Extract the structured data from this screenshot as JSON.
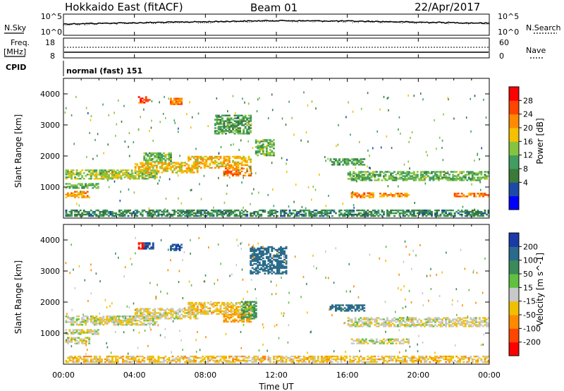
{
  "header": {
    "radar": "Hokkaido East (fitACF)",
    "beam": "Beam 01",
    "date": "22/Apr/2017"
  },
  "noise_panel": {
    "left_label": "N.Sky",
    "right_label": "N.Search",
    "ticks_left": [
      "10^5",
      "10^0"
    ],
    "ticks_right": [
      "10^5",
      "10^0"
    ]
  },
  "freq_panel": {
    "left_label_1": "Freq.",
    "left_label_2": "[MHz]",
    "right_label": "Nave",
    "ticks_left": [
      "18",
      "8"
    ],
    "ticks_right": [
      "60",
      "0"
    ]
  },
  "cpid": {
    "label": "CPID",
    "value": "normal (fast) 151"
  },
  "power_panel": {
    "ylabel": "Slant Range [km]",
    "yticks": [
      "4000",
      "3000",
      "2000",
      "1000"
    ],
    "colorbar_label": "Power [dB]",
    "colorbar_ticks": [
      "28",
      "24",
      "20",
      "16",
      "12",
      "8",
      "4"
    ],
    "colors": [
      "#0000ff",
      "#1c4aa8",
      "#3a7a3a",
      "#3f9e60",
      "#86c440",
      "#f5c000",
      "#ff8a00",
      "#ff4500",
      "#ff0000"
    ]
  },
  "velocity_panel": {
    "ylabel": "Slant Range [km]",
    "yticks": [
      "4000",
      "3000",
      "2000",
      "1000"
    ],
    "colorbar_label": "Velocity [m s^-1]",
    "colorbar_ticks": [
      "200",
      "100",
      "50",
      "15",
      "-15",
      "-50",
      "-100",
      "-200"
    ],
    "colors": [
      "#1a3aa8",
      "#2a6a8a",
      "#3a8a5a",
      "#60c040",
      "#c8c8c8",
      "#f0c000",
      "#ff8a00",
      "#ff4500",
      "#ff0000"
    ]
  },
  "xaxis": {
    "label": "Time UT",
    "ticks": [
      "00:00",
      "04:00",
      "08:00",
      "12:00",
      "16:00",
      "20:00",
      "00:00"
    ]
  },
  "chart_data": [
    {
      "type": "line",
      "title": "Hokkaido East (fitACF)",
      "series": [
        {
          "name": "N.Sky",
          "x": [
            0,
            4,
            8,
            12,
            16,
            20,
            24
          ],
          "values": [
            5,
            10,
            20,
            40,
            30,
            15,
            8
          ]
        },
        {
          "name": "N.Search",
          "x": [
            0,
            4,
            8,
            12,
            16,
            20,
            24
          ],
          "values": [
            3,
            8,
            15,
            30,
            20,
            12,
            6
          ]
        }
      ],
      "xlabel": "Time UT",
      "ylabel": "N.Sky",
      "xlim": [
        0,
        24
      ]
    },
    {
      "type": "heatmap",
      "title": "Power",
      "xlabel": "Time UT",
      "ylabel": "Slant Range [km]",
      "xlim": [
        0,
        24
      ],
      "ylim": [
        0,
        4500
      ],
      "zlabel": "Power [dB]",
      "zlim": [
        0,
        30
      ],
      "patches": [
        {
          "t": [
            0.1,
            5.2
          ],
          "r": [
            1250,
            1550
          ],
          "p": 16
        },
        {
          "t": [
            0.1,
            2.0
          ],
          "r": [
            950,
            1100
          ],
          "p": 14
        },
        {
          "t": [
            0.1,
            1.5
          ],
          "r": [
            650,
            850
          ],
          "p": 22
        },
        {
          "t": [
            2.0,
            4.0
          ],
          "r": [
            1280,
            1420
          ],
          "p": 18
        },
        {
          "t": [
            4.0,
            7.5
          ],
          "r": [
            1450,
            1800
          ],
          "p": 20
        },
        {
          "t": [
            4.5,
            6.0
          ],
          "r": [
            1800,
            2100
          ],
          "p": 14
        },
        {
          "t": [
            7.0,
            10.5
          ],
          "r": [
            1600,
            2000
          ],
          "p": 20
        },
        {
          "t": [
            9.0,
            10.5
          ],
          "r": [
            1350,
            1600
          ],
          "p": 24
        },
        {
          "t": [
            4.2,
            4.8
          ],
          "r": [
            3700,
            3900
          ],
          "p": 26
        },
        {
          "t": [
            6.0,
            6.6
          ],
          "r": [
            3650,
            3850
          ],
          "p": 24
        },
        {
          "t": [
            8.5,
            10.5
          ],
          "r": [
            2700,
            3300
          ],
          "p": 12
        },
        {
          "t": [
            10.8,
            11.8
          ],
          "r": [
            2000,
            2500
          ],
          "p": 14
        },
        {
          "t": [
            15.0,
            17.0
          ],
          "r": [
            1700,
            1900
          ],
          "p": 12
        },
        {
          "t": [
            16.0,
            21.0
          ],
          "r": [
            1200,
            1500
          ],
          "p": 14
        },
        {
          "t": [
            16.2,
            17.5
          ],
          "r": [
            650,
            800
          ],
          "p": 24
        },
        {
          "t": [
            17.8,
            19.5
          ],
          "r": [
            680,
            780
          ],
          "p": 22
        },
        {
          "t": [
            22.0,
            24.0
          ],
          "r": [
            680,
            800
          ],
          "p": 24
        },
        {
          "t": [
            21.0,
            24.0
          ],
          "r": [
            1200,
            1500
          ],
          "p": 14
        },
        {
          "t": [
            0.1,
            24.0
          ],
          "r": [
            50,
            250
          ],
          "p": 10
        }
      ]
    },
    {
      "type": "heatmap",
      "title": "Velocity",
      "xlabel": "Time UT",
      "ylabel": "Slant Range [km]",
      "xlim": [
        0,
        24
      ],
      "ylim": [
        0,
        4500
      ],
      "zlabel": "Velocity [m s^-1]",
      "zlim": [
        -250,
        250
      ],
      "patches": [
        {
          "t": [
            0.1,
            5.2
          ],
          "r": [
            1250,
            1550
          ],
          "v": 0
        },
        {
          "t": [
            0.1,
            2.0
          ],
          "r": [
            950,
            1100
          ],
          "v": -5
        },
        {
          "t": [
            0.1,
            1.5
          ],
          "r": [
            650,
            850
          ],
          "v": 0
        },
        {
          "t": [
            2.0,
            4.0
          ],
          "r": [
            1280,
            1420
          ],
          "v": -20
        },
        {
          "t": [
            4.0,
            7.5
          ],
          "r": [
            1450,
            1800
          ],
          "v": -10
        },
        {
          "t": [
            7.0,
            10.5
          ],
          "r": [
            1600,
            2000
          ],
          "v": -30
        },
        {
          "t": [
            9.0,
            10.5
          ],
          "r": [
            1350,
            1600
          ],
          "v": -60
        },
        {
          "t": [
            10.0,
            10.8
          ],
          "r": [
            1450,
            2000
          ],
          "v": 60
        },
        {
          "t": [
            4.2,
            4.5
          ],
          "r": [
            3700,
            3900
          ],
          "v": -200
        },
        {
          "t": [
            4.5,
            5.0
          ],
          "r": [
            3700,
            3900
          ],
          "v": 200
        },
        {
          "t": [
            6.0,
            6.6
          ],
          "r": [
            3650,
            3850
          ],
          "v": 200
        },
        {
          "t": [
            10.5,
            12.5
          ],
          "r": [
            2900,
            3800
          ],
          "v": 150
        },
        {
          "t": [
            15.0,
            17.0
          ],
          "r": [
            1700,
            1900
          ],
          "v": 120
        },
        {
          "t": [
            16.0,
            21.0
          ],
          "r": [
            1200,
            1500
          ],
          "v": 0
        },
        {
          "t": [
            16.2,
            19.5
          ],
          "r": [
            650,
            800
          ],
          "v": 0
        },
        {
          "t": [
            21.0,
            24.0
          ],
          "r": [
            1200,
            1500
          ],
          "v": -10
        },
        {
          "t": [
            0.1,
            24.0
          ],
          "r": [
            50,
            250
          ],
          "v": -30
        }
      ]
    }
  ]
}
